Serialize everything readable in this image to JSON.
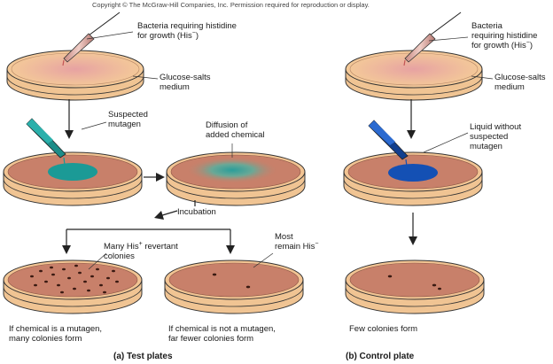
{
  "copyright": "Copyright © The McGraw-Hill Companies, Inc. Permission required for reproduction or display.",
  "test": {
    "bacteria_label_1": "Bacteria requiring histidine",
    "bacteria_label_2": "for growth (His",
    "bacteria_label_2_sup": "−",
    "bacteria_label_2_end": ")",
    "medium_label_1": "Glucose-salts",
    "medium_label_2": "medium",
    "mutagen_label_1": "Suspected",
    "mutagen_label_2": "mutagen",
    "diffusion_label_1": "Diffusion of",
    "diffusion_label_2": "added chemical",
    "incubation_label": "Incubation",
    "many_label_1": "Many His",
    "many_label_1_sup": "+",
    "many_label_1_end": " revertant",
    "many_label_2": "colonies",
    "most_label_1": "Most",
    "most_label_2": "remain His",
    "most_label_2_sup": "−",
    "result_mutagen_1": "If chemical is a mutagen,",
    "result_mutagen_2": "many colonies form",
    "result_not_1": "If chemical is not a mutagen,",
    "result_not_2": "far fewer colonies form",
    "caption": "(a) Test plates"
  },
  "control": {
    "bacteria_label_1": "Bacteria",
    "bacteria_label_2": "requiring histidine",
    "bacteria_label_3": "for growth (His",
    "bacteria_label_3_sup": "−",
    "bacteria_label_3_end": ")",
    "medium_label_1": "Glucose-salts",
    "medium_label_2": "medium",
    "liquid_label_1": "Liquid without",
    "liquid_label_2": "suspected",
    "liquid_label_3": "mutagen",
    "result_label": "Few colonies form",
    "caption": "(b) Control plate"
  },
  "colors": {
    "dish_top_fill": "#f2c493",
    "agar_fill": "#c8806a",
    "teal_drop": "#1b9a96",
    "blue_drop": "#1450b4",
    "outline": "#333333"
  }
}
